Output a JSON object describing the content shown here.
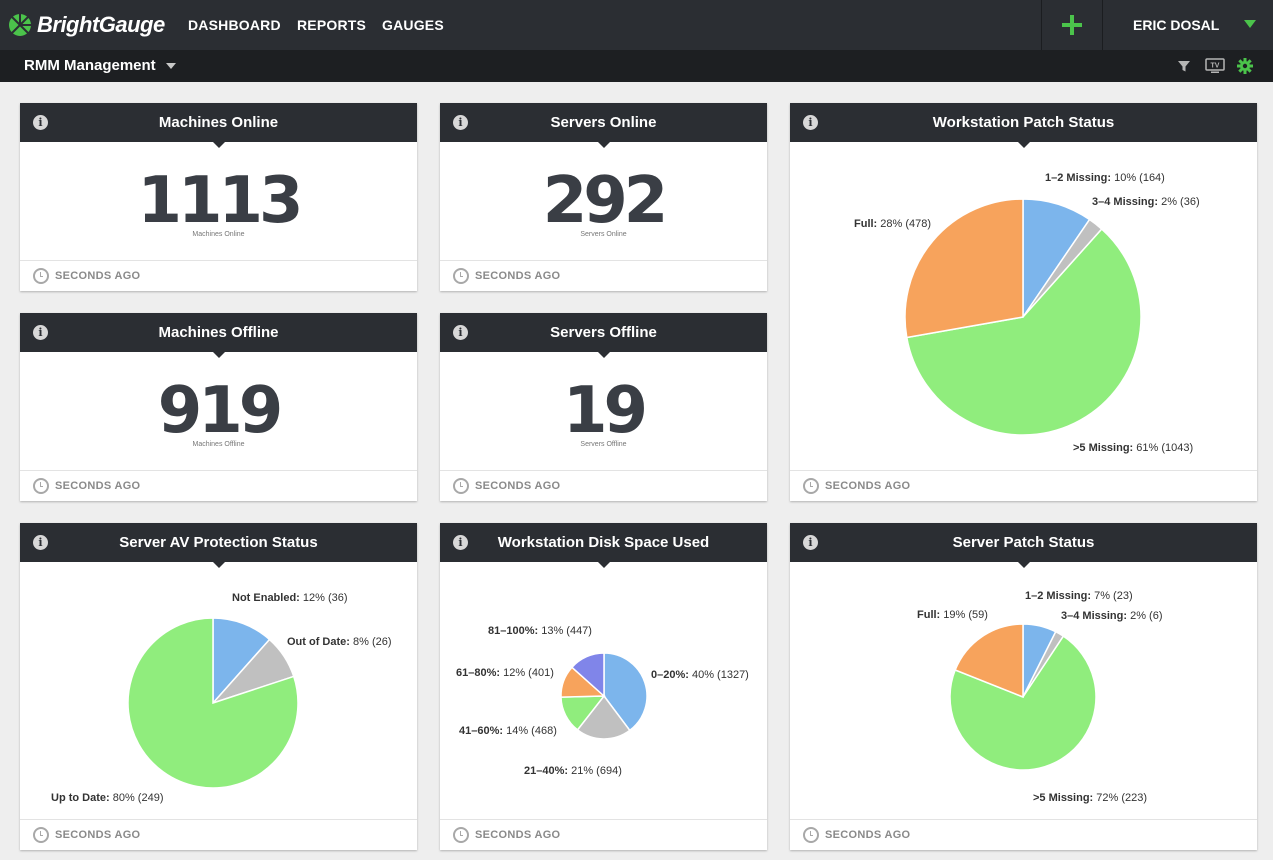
{
  "app": {
    "logo_text": "BrightGauge",
    "nav": [
      "DASHBOARD",
      "REPORTS",
      "GAUGES"
    ],
    "user_name": "ERIC DOSAL",
    "accent_color": "#4bc34b"
  },
  "dashboard": {
    "name": "RMM Management",
    "tools": [
      "filter-icon",
      "tv-icon",
      "gear-icon"
    ]
  },
  "footer_text": "SECONDS AGO",
  "gauges": {
    "machines_online": {
      "title": "Machines Online",
      "value": "1113",
      "label": "Machines Online"
    },
    "servers_online": {
      "title": "Servers Online",
      "value": "292",
      "label": "Servers Online"
    },
    "machines_offline": {
      "title": "Machines Offline",
      "value": "919",
      "label": "Machines Offline"
    },
    "servers_offline": {
      "title": "Servers Offline",
      "value": "19",
      "label": "Servers Offline"
    }
  },
  "chart_data": [
    {
      "id": "workstation_patch",
      "type": "pie",
      "title": "Workstation Patch Status",
      "slices": [
        {
          "name": "1-2 Missing",
          "label": "10% (164)",
          "value": 164,
          "color": "#7cb5ec"
        },
        {
          "name": "3-4 Missing",
          "label": "2% (36)",
          "value": 36,
          "color": "#c0c0c0"
        },
        {
          "name": ">5 Missing",
          "label": "61% (1043)",
          "value": 1043,
          "color": "#90ed7d"
        },
        {
          "name": "Full",
          "label": "28% (478)",
          "value": 478,
          "color": "#f7a35c"
        }
      ]
    },
    {
      "id": "server_av",
      "type": "pie",
      "title": "Server AV Protection Status",
      "slices": [
        {
          "name": "Not Enabled",
          "label": "12% (36)",
          "value": 36,
          "color": "#7cb5ec"
        },
        {
          "name": "Out of Date",
          "label": "8% (26)",
          "value": 26,
          "color": "#c0c0c0"
        },
        {
          "name": "Up to Date",
          "label": "80% (249)",
          "value": 249,
          "color": "#90ed7d"
        }
      ]
    },
    {
      "id": "disk_space",
      "type": "pie",
      "title": "Workstation Disk Space Used",
      "slices": [
        {
          "name": "0-20%",
          "label": "40% (1327)",
          "value": 1327,
          "color": "#7cb5ec"
        },
        {
          "name": "21-40%",
          "label": "21% (694)",
          "value": 694,
          "color": "#c0c0c0"
        },
        {
          "name": "41-60%",
          "label": "14% (468)",
          "value": 468,
          "color": "#90ed7d"
        },
        {
          "name": "61-80%",
          "label": "12% (401)",
          "value": 401,
          "color": "#f7a35c"
        },
        {
          "name": "81-100%",
          "label": "13% (447)",
          "value": 447,
          "color": "#8085e9"
        }
      ]
    },
    {
      "id": "server_patch",
      "type": "pie",
      "title": "Server Patch Status",
      "slices": [
        {
          "name": "1-2 Missing",
          "label": "7% (23)",
          "value": 23,
          "color": "#7cb5ec"
        },
        {
          "name": "3-4 Missing",
          "label": "2% (6)",
          "value": 6,
          "color": "#c0c0c0"
        },
        {
          "name": ">5 Missing",
          "label": "72% (223)",
          "value": 223,
          "color": "#90ed7d"
        },
        {
          "name": "Full",
          "label": "19% (59)",
          "value": 59,
          "color": "#f7a35c"
        }
      ]
    }
  ]
}
